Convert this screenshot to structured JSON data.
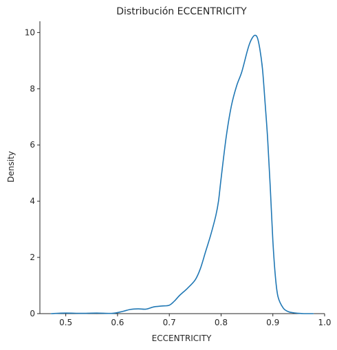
{
  "chart_data": {
    "type": "line",
    "title": "Distribución ECCENTRICITY",
    "xlabel": "ECCENTRICITY",
    "ylabel": "Density",
    "xlim": [
      0.45,
      1.0
    ],
    "ylim": [
      0,
      10.4
    ],
    "xticks": [
      0.5,
      0.6,
      0.7,
      0.8,
      0.9,
      1.0
    ],
    "xtick_labels": [
      "0.5",
      "0.6",
      "0.7",
      "0.8",
      "0.9",
      "1.0"
    ],
    "yticks": [
      0,
      2,
      4,
      6,
      8,
      10
    ],
    "ytick_labels": [
      "0",
      "2",
      "4",
      "6",
      "8",
      "10"
    ],
    "grid": false,
    "series": [
      {
        "color": "#1f77b4",
        "x": [
          0.472,
          0.5,
          0.53,
          0.56,
          0.59,
          0.61,
          0.625,
          0.64,
          0.655,
          0.67,
          0.685,
          0.7,
          0.71,
          0.72,
          0.735,
          0.75,
          0.76,
          0.77,
          0.78,
          0.79,
          0.795,
          0.8,
          0.81,
          0.82,
          0.83,
          0.84,
          0.85,
          0.855,
          0.86,
          0.865,
          0.87,
          0.875,
          0.88,
          0.885,
          0.89,
          0.895,
          0.9,
          0.905,
          0.91,
          0.92,
          0.93,
          0.94,
          0.95,
          0.96,
          0.978
        ],
        "y": [
          0.0,
          0.02,
          0.01,
          0.02,
          0.01,
          0.08,
          0.15,
          0.17,
          0.16,
          0.24,
          0.27,
          0.3,
          0.45,
          0.65,
          0.9,
          1.2,
          1.6,
          2.2,
          2.8,
          3.5,
          4.0,
          4.8,
          6.3,
          7.4,
          8.1,
          8.6,
          9.3,
          9.6,
          9.8,
          9.9,
          9.82,
          9.4,
          8.7,
          7.5,
          6.2,
          4.5,
          2.6,
          1.3,
          0.6,
          0.2,
          0.07,
          0.03,
          0.01,
          0.0,
          0.0
        ]
      }
    ]
  }
}
